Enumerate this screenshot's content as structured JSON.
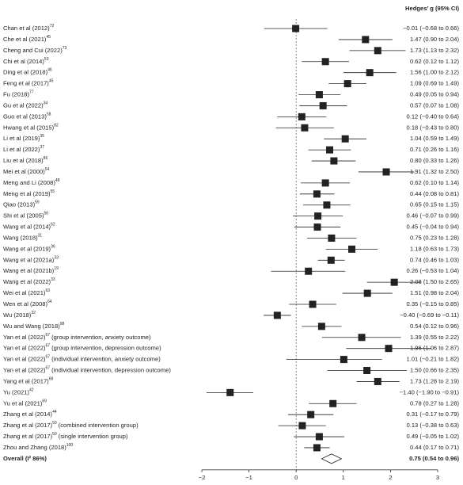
{
  "chart_data": {
    "type": "forest",
    "column_header": "Hedges’ g (95% CI)",
    "xlim": [
      -2,
      3
    ],
    "xticks": [
      {
        "value": -2,
        "label": "−2"
      },
      {
        "value": -1,
        "label": "−1"
      },
      0,
      1,
      2,
      3
    ],
    "reference_line": 0,
    "color": "#222222",
    "studies": [
      {
        "label": "Chan et al (2012)",
        "ref": "72",
        "value": -0.01,
        "lower": -0.68,
        "upper": 0.66,
        "value_label": "−0.01 (−0.68 to 0.66)"
      },
      {
        "label": "Che et al (2021)",
        "ref": "45",
        "value": 1.47,
        "lower": 0.9,
        "upper": 2.04,
        "value_label": "1.47 (0.90 to 2.04)"
      },
      {
        "label": "Cheng and Cui (2022)",
        "ref": "73",
        "value": 1.73,
        "lower": 1.13,
        "upper": 2.32,
        "value_label": "1.73 (1.13 to 2.32)"
      },
      {
        "label": "Chi et al (2014)",
        "ref": "53",
        "value": 0.62,
        "lower": 0.12,
        "upper": 1.12,
        "value_label": "0.62 (0.12 to 1.12)"
      },
      {
        "label": "Ding et al (2018)",
        "ref": "46",
        "value": 1.56,
        "lower": 1.0,
        "upper": 2.12,
        "value_label": "1.56 (1.00 to 2.12)"
      },
      {
        "label": "Feng et al (2017)",
        "ref": "45",
        "value": 1.09,
        "lower": 0.69,
        "upper": 1.49,
        "value_label": "1.09 (0.69 to 1.49)"
      },
      {
        "label": "Fu (2018)",
        "ref": "77",
        "value": 0.49,
        "lower": 0.05,
        "upper": 0.94,
        "value_label": "0.49 (0.05 to 0.94)"
      },
      {
        "label": "Gu et al (2022)",
        "ref": "34",
        "value": 0.57,
        "lower": 0.07,
        "upper": 1.08,
        "value_label": "0.57 (0.07 to 1.08)"
      },
      {
        "label": "Guo et al (2013)",
        "ref": "58",
        "value": 0.12,
        "lower": -0.4,
        "upper": 0.64,
        "value_label": "0.12 (−0.40 to 0.64)"
      },
      {
        "label": "Hwang et al (2015)",
        "ref": "82",
        "value": 0.18,
        "lower": -0.43,
        "upper": 0.8,
        "value_label": "0.18 (−0.43 to 0.80)"
      },
      {
        "label": "Li et al (2019)",
        "ref": "35",
        "value": 1.04,
        "lower": 0.59,
        "upper": 1.49,
        "value_label": "1.04 (0.59 to 1.49)"
      },
      {
        "label": "Li et al (2022)",
        "ref": "37",
        "value": 0.71,
        "lower": 0.26,
        "upper": 1.16,
        "value_label": "0.71 (0.26 to 1.16)"
      },
      {
        "label": "Liu et al (2018)",
        "ref": "86",
        "value": 0.8,
        "lower": 0.33,
        "upper": 1.26,
        "value_label": "0.80 (0.33 to 1.26)"
      },
      {
        "label": "Mei et al (2000)",
        "ref": "54",
        "value": 1.91,
        "lower": 1.32,
        "upper": 2.5,
        "value_label": "1.91 (1.32 to 2.50)"
      },
      {
        "label": "Meng and Li (2008)",
        "ref": "48",
        "value": 0.62,
        "lower": 0.1,
        "upper": 1.14,
        "value_label": "0.62 (0.10 to 1.14)"
      },
      {
        "label": "Meng et al (2019)",
        "ref": "55",
        "value": 0.44,
        "lower": 0.08,
        "upper": 0.81,
        "value_label": "0.44 (0.08 to 0.81)"
      },
      {
        "label": "Qiao (2013)",
        "ref": "59",
        "value": 0.65,
        "lower": 0.15,
        "upper": 1.15,
        "value_label": "0.65 (0.15 to 1.15)"
      },
      {
        "label": "Shi et al (2005)",
        "ref": "56",
        "value": 0.46,
        "lower": -0.07,
        "upper": 0.99,
        "value_label": "0.46 (−0.07 to 0.99)"
      },
      {
        "label": "Wang et al (2014)",
        "ref": "62",
        "value": 0.45,
        "lower": -0.04,
        "upper": 0.94,
        "value_label": "0.45 (−0.04 to 0.94)"
      },
      {
        "label": "Wang (2018)",
        "ref": "31",
        "value": 0.75,
        "lower": 0.23,
        "upper": 1.28,
        "value_label": "0.75 (0.23 to 1.28)"
      },
      {
        "label": "Wang et al (2019)",
        "ref": "36",
        "value": 1.18,
        "lower": 0.63,
        "upper": 1.73,
        "value_label": "1.18 (0.63 to 1.73)"
      },
      {
        "label": "Wang et al (2021a)",
        "ref": "33",
        "value": 0.74,
        "lower": 0.46,
        "upper": 1.03,
        "value_label": "0.74 (0.46 to 1.03)"
      },
      {
        "label": "Wang et al (2021b)",
        "ref": "19",
        "value": 0.26,
        "lower": -0.53,
        "upper": 1.04,
        "value_label": "0.26 (−0.53 to 1.04)"
      },
      {
        "label": "Wang et al (2022)",
        "ref": "33",
        "value": 2.08,
        "lower": 1.5,
        "upper": 2.65,
        "value_label": "2.08 (1.50 to 2.65)"
      },
      {
        "label": "Wei et al (2021)",
        "ref": "63",
        "value": 1.51,
        "lower": 0.98,
        "upper": 2.04,
        "value_label": "1.51 (0.98 to 2.04)"
      },
      {
        "label": "Wen et al (2008)",
        "ref": "64",
        "value": 0.35,
        "lower": -0.15,
        "upper": 0.85,
        "value_label": "0.35 (−0.15 to 0.85)"
      },
      {
        "label": "Wu (2018)",
        "ref": "32",
        "value": -0.4,
        "lower": -0.69,
        "upper": -0.11,
        "value_label": "−0.40 (−0.69 to −0.11)"
      },
      {
        "label": "Wu and Wang (2018)",
        "ref": "98",
        "value": 0.54,
        "lower": 0.12,
        "upper": 0.96,
        "value_label": "0.54 (0.12 to 0.96)"
      },
      {
        "label": "Yan et al (2022)",
        "ref": "67",
        "suffix": " (group intervention, anxiety outcome)",
        "value": 1.39,
        "lower": 0.55,
        "upper": 2.22,
        "value_label": "1.39 (0.55 to 2.22)"
      },
      {
        "label": "Yan et al (2022)",
        "ref": "67",
        "suffix": " (group intervention, depression outcome)",
        "value": 1.96,
        "lower": 1.06,
        "upper": 2.87,
        "value_label": "1.96 (1.06 to 2.87)"
      },
      {
        "label": "Yan et al (2022)",
        "ref": "67",
        "suffix": " (individual intervention, anxiety outcome)",
        "value": 1.01,
        "lower": -0.21,
        "upper": 1.82,
        "value_label": "1.01 (−0.21 to 1.82)"
      },
      {
        "label": "Yan et al (2022)",
        "ref": "67",
        "suffix": " (individual intervention, depression outcome)",
        "value": 1.5,
        "lower": 0.66,
        "upper": 2.35,
        "value_label": "1.50 (0.66 to 2.35)"
      },
      {
        "label": "Yang et al (2017)",
        "ref": "68",
        "value": 1.73,
        "lower": 1.28,
        "upper": 2.19,
        "value_label": "1.73 (1.28 to 2.19)"
      },
      {
        "label": "Yu (2021)",
        "ref": "42",
        "value": -1.4,
        "lower": -1.9,
        "upper": -0.91,
        "value_label": "−1.40 (−1.90 to −0.91)"
      },
      {
        "label": "Yu et al (2021)",
        "ref": "69",
        "value": 0.78,
        "lower": 0.27,
        "upper": 1.28,
        "value_label": "0.78 (0.27 to 1.28)"
      },
      {
        "label": "Zhang et al (2014)",
        "ref": "44",
        "value": 0.31,
        "lower": -0.17,
        "upper": 0.79,
        "value_label": "0.31 (−0.17 to 0.79)"
      },
      {
        "label": "Zhang et al (2017)",
        "ref": "50",
        "suffix": " (combined intervention group)",
        "value": 0.13,
        "lower": -0.38,
        "upper": 0.63,
        "value_label": "0.13 (−0.38 to 0.63)"
      },
      {
        "label": "Zhang et al (2017)",
        "ref": "50",
        "suffix": " (single intervention group)",
        "value": 0.49,
        "lower": -0.05,
        "upper": 1.02,
        "value_label": "0.49 (−0.05 to 1.02)"
      },
      {
        "label": "Zhou and Zhang (2018)",
        "ref": "100",
        "value": 0.44,
        "lower": 0.17,
        "upper": 0.71,
        "value_label": "0.44 (0.17 to 0.71)"
      }
    ],
    "overall": {
      "label": "Overall (I² 86%)",
      "value": 0.75,
      "lower": 0.54,
      "upper": 0.96,
      "value_label": "0.75 (0.54 to 0.96)"
    }
  }
}
